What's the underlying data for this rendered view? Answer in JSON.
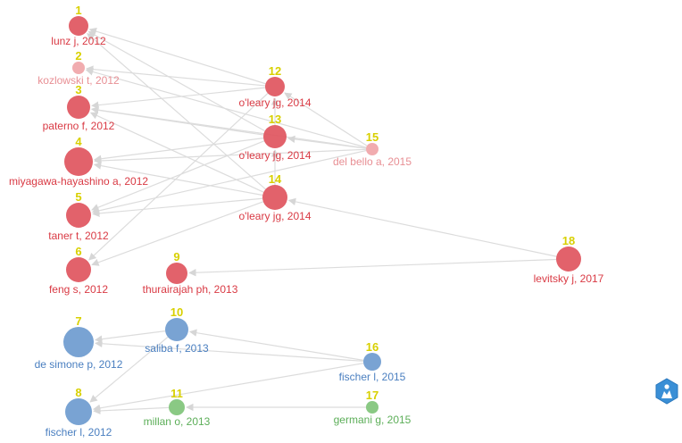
{
  "colors": {
    "red": "#e0555e",
    "pink": "#f0a5a8",
    "blue": "#6e9bcf",
    "green": "#80c47a",
    "label_red": "#d93a44",
    "label_pink": "#e88f94",
    "label_blue": "#4a7fc0",
    "label_green": "#5cae58",
    "number": "#d8d000",
    "edge": "#dcdcdc"
  },
  "nodes": [
    {
      "id": "1",
      "number": "1",
      "label": "lunz j, 2012",
      "cluster": "red"
    },
    {
      "id": "2",
      "number": "2",
      "label": "kozlowski t, 2012",
      "cluster": "pink"
    },
    {
      "id": "3",
      "number": "3",
      "label": "paterno f, 2012",
      "cluster": "red"
    },
    {
      "id": "4",
      "number": "4",
      "label": "miyagawa-hayashino a, 2012",
      "cluster": "red"
    },
    {
      "id": "5",
      "number": "5",
      "label": "taner t, 2012",
      "cluster": "red"
    },
    {
      "id": "6",
      "number": "6",
      "label": "feng s, 2012",
      "cluster": "red"
    },
    {
      "id": "7",
      "number": "7",
      "label": "de simone p, 2012",
      "cluster": "blue"
    },
    {
      "id": "8",
      "number": "8",
      "label": "fischer l, 2012",
      "cluster": "blue"
    },
    {
      "id": "9",
      "number": "9",
      "label": "thurairajah ph, 2013",
      "cluster": "red"
    },
    {
      "id": "10",
      "number": "10",
      "label": "saliba f, 2013",
      "cluster": "blue"
    },
    {
      "id": "11",
      "number": "11",
      "label": "millan o, 2013",
      "cluster": "green"
    },
    {
      "id": "12",
      "number": "12",
      "label": "o'leary jg, 2014",
      "cluster": "red"
    },
    {
      "id": "13",
      "number": "13",
      "label": "o'leary jg, 2014",
      "cluster": "red"
    },
    {
      "id": "14",
      "number": "14",
      "label": "o'leary jg, 2014",
      "cluster": "red"
    },
    {
      "id": "15",
      "number": "15",
      "label": "del bello a, 2015",
      "cluster": "pink"
    },
    {
      "id": "16",
      "number": "16",
      "label": "fischer l, 2015",
      "cluster": "blue"
    },
    {
      "id": "17",
      "number": "17",
      "label": "germani g, 2015",
      "cluster": "green"
    },
    {
      "id": "18",
      "number": "18",
      "label": "levitsky j, 2017",
      "cluster": "red"
    }
  ],
  "edges": [
    [
      "12",
      "1"
    ],
    [
      "12",
      "2"
    ],
    [
      "12",
      "3"
    ],
    [
      "12",
      "6"
    ],
    [
      "13",
      "1"
    ],
    [
      "13",
      "3"
    ],
    [
      "13",
      "4"
    ],
    [
      "13",
      "5"
    ],
    [
      "14",
      "1"
    ],
    [
      "14",
      "3"
    ],
    [
      "14",
      "4"
    ],
    [
      "14",
      "5"
    ],
    [
      "14",
      "6"
    ],
    [
      "15",
      "2"
    ],
    [
      "15",
      "3"
    ],
    [
      "15",
      "4"
    ],
    [
      "15",
      "5"
    ],
    [
      "15",
      "12"
    ],
    [
      "15",
      "13"
    ],
    [
      "13",
      "12"
    ],
    [
      "14",
      "13"
    ],
    [
      "18",
      "14"
    ],
    [
      "18",
      "9"
    ],
    [
      "10",
      "7"
    ],
    [
      "10",
      "8"
    ],
    [
      "16",
      "7"
    ],
    [
      "16",
      "10"
    ],
    [
      "16",
      "8"
    ],
    [
      "17",
      "11"
    ],
    [
      "11",
      "8"
    ]
  ],
  "logo_icon": "vosviewer-logo-icon"
}
